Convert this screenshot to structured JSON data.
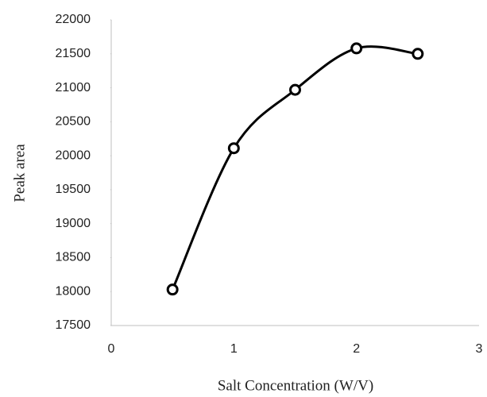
{
  "chart_data": {
    "type": "scatter",
    "smooth": true,
    "x_label": "Salt Concentration (W/V)",
    "y_label": "Peak area",
    "x": [
      0.5,
      1,
      1.5,
      2,
      2.5
    ],
    "values": [
      18030,
      20110,
      20970,
      21580,
      21500
    ],
    "color": "#000000",
    "xlim": [
      0,
      3
    ],
    "xticks": [
      0,
      1,
      2,
      3
    ],
    "ylim": [
      17500,
      22000
    ],
    "yticks": [
      17500,
      18000,
      18500,
      19000,
      19500,
      20000,
      20500,
      21000,
      21500,
      22000
    ],
    "grid": false
  }
}
